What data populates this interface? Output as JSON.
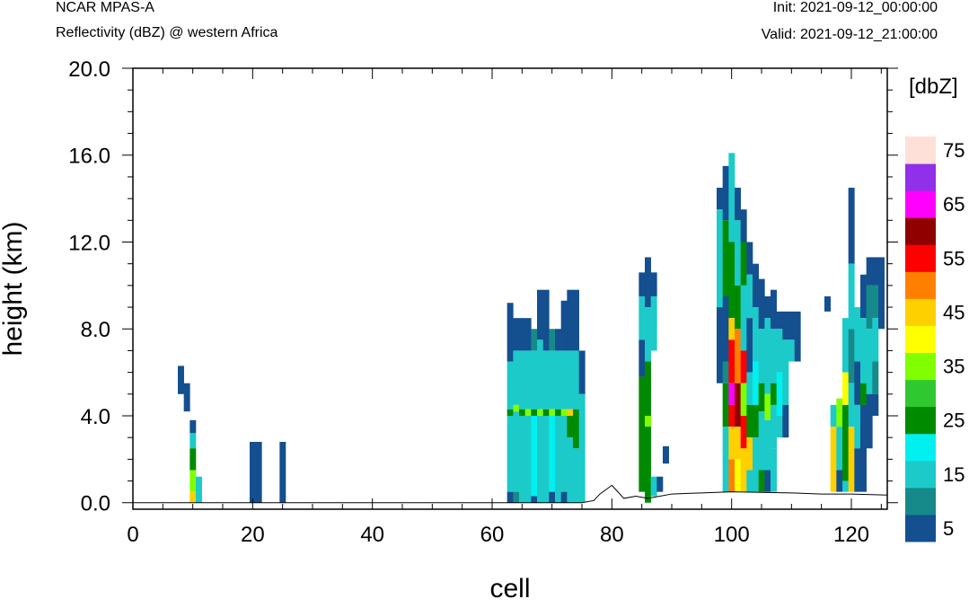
{
  "header": {
    "model": "NCAR MPAS-A",
    "field": "Reflectivity (dBZ) @ western Africa",
    "init": "Init: 2021-09-12_00:00:00",
    "valid": "Valid: 2021-09-12_21:00:00"
  },
  "chart_data": {
    "type": "heatmap",
    "xlabel": "cell",
    "ylabel": "height (km)",
    "xlim": [
      0,
      126
    ],
    "ylim": [
      -0.3,
      20.0
    ],
    "x_ticks": [
      "0",
      "20",
      "40",
      "60",
      "80",
      "100",
      "120"
    ],
    "x_tick_values": [
      0,
      20,
      40,
      60,
      80,
      100,
      120
    ],
    "y_ticks": [
      "0.0",
      "4.0",
      "8.0",
      "12.0",
      "16.0",
      "20.0"
    ],
    "y_tick_values": [
      0,
      4,
      8,
      12,
      16,
      20
    ],
    "colorbar": {
      "unit": "[dbZ]",
      "labels": [
        "5",
        "15",
        "25",
        "35",
        "45",
        "55",
        "65",
        "75"
      ],
      "levels": [
        5,
        10,
        15,
        20,
        25,
        30,
        35,
        40,
        45,
        50,
        55,
        60,
        65,
        70,
        75
      ],
      "colors": [
        "#144f8f",
        "#168a8a",
        "#1ccaca",
        "#00f0f0",
        "#008a00",
        "#30c830",
        "#80ff00",
        "#ffff00",
        "#ffd000",
        "#ff8000",
        "#ff0000",
        "#900000",
        "#ff00ff",
        "#9030e8",
        "#ffe0d8"
      ]
    },
    "terrain": [
      [
        75,
        0
      ],
      [
        77,
        0.1
      ],
      [
        78,
        0.4
      ],
      [
        79,
        0.6
      ],
      [
        80,
        0.8
      ],
      [
        81,
        0.5
      ],
      [
        82,
        0.2
      ],
      [
        84,
        0.3
      ],
      [
        86,
        0.2
      ],
      [
        88,
        0.3
      ],
      [
        90,
        0.4
      ],
      [
        95,
        0.45
      ],
      [
        100,
        0.5
      ],
      [
        110,
        0.45
      ],
      [
        115,
        0.4
      ],
      [
        120,
        0.4
      ],
      [
        126,
        0.35
      ]
    ],
    "columns": [
      {
        "x": 8,
        "cells": [
          [
            5.0,
            6.3,
            5
          ]
        ]
      },
      {
        "x": 9,
        "cells": [
          [
            4.2,
            5.5,
            5
          ]
        ]
      },
      {
        "x": 10,
        "cells": [
          [
            3.2,
            3.8,
            5
          ],
          [
            2.5,
            3.2,
            15
          ],
          [
            1.5,
            2.5,
            25
          ],
          [
            0.5,
            1.5,
            35
          ],
          [
            0,
            0.5,
            45
          ]
        ]
      },
      {
        "x": 11,
        "cells": [
          [
            0,
            1.2,
            15
          ]
        ]
      },
      {
        "x": 20,
        "cells": [
          [
            0,
            2.8,
            5
          ]
        ]
      },
      {
        "x": 21,
        "cells": [
          [
            0,
            2.8,
            5
          ]
        ]
      },
      {
        "x": 25,
        "cells": [
          [
            0,
            2.8,
            5
          ]
        ]
      },
      {
        "x": 63,
        "cells": [
          [
            6.5,
            9.2,
            5
          ],
          [
            4.3,
            6.5,
            15
          ],
          [
            4.0,
            4.3,
            25
          ],
          [
            0.5,
            4.0,
            15
          ],
          [
            0,
            0.5,
            5
          ]
        ]
      },
      {
        "x": 64,
        "cells": [
          [
            7.0,
            8.5,
            5
          ],
          [
            4.5,
            7.0,
            15
          ],
          [
            4.2,
            4.5,
            35
          ],
          [
            0.5,
            4.2,
            15
          ],
          [
            0,
            0.5,
            10
          ]
        ]
      },
      {
        "x": 65,
        "cells": [
          [
            7.0,
            8.5,
            5
          ],
          [
            4.3,
            7.0,
            15
          ],
          [
            4.0,
            4.3,
            25
          ],
          [
            0,
            4.0,
            15
          ]
        ]
      },
      {
        "x": 66,
        "cells": [
          [
            7.0,
            8.5,
            5
          ],
          [
            4.3,
            7.0,
            15
          ],
          [
            4.0,
            4.3,
            35
          ],
          [
            0,
            4.0,
            15
          ]
        ]
      },
      {
        "x": 67,
        "cells": [
          [
            7.0,
            8.0,
            10
          ],
          [
            4.3,
            7.0,
            15
          ],
          [
            4.0,
            4.3,
            25
          ],
          [
            0.3,
            4.0,
            20
          ],
          [
            0,
            0.3,
            5
          ]
        ]
      },
      {
        "x": 68,
        "cells": [
          [
            7.5,
            9.8,
            5
          ],
          [
            4.3,
            7.5,
            15
          ],
          [
            4.0,
            4.3,
            35
          ],
          [
            0,
            4.0,
            15
          ]
        ]
      },
      {
        "x": 69,
        "cells": [
          [
            7.0,
            9.8,
            5
          ],
          [
            4.3,
            7.0,
            15
          ],
          [
            4.0,
            4.3,
            25
          ],
          [
            0,
            4.0,
            15
          ]
        ]
      },
      {
        "x": 70,
        "cells": [
          [
            7.0,
            8.0,
            10
          ],
          [
            4.3,
            7.0,
            15
          ],
          [
            4.0,
            4.3,
            35
          ],
          [
            0.5,
            4.0,
            20
          ],
          [
            0,
            0.5,
            5
          ]
        ]
      },
      {
        "x": 71,
        "cells": [
          [
            7.0,
            8.0,
            5
          ],
          [
            4.3,
            7.0,
            15
          ],
          [
            4.0,
            4.3,
            25
          ],
          [
            0,
            4.0,
            15
          ]
        ]
      },
      {
        "x": 72,
        "cells": [
          [
            7.0,
            9.3,
            5
          ],
          [
            4.3,
            7.0,
            15
          ],
          [
            4.0,
            4.3,
            35
          ],
          [
            0.5,
            4.0,
            15
          ],
          [
            0,
            0.5,
            5
          ]
        ]
      },
      {
        "x": 73,
        "cells": [
          [
            7.0,
            9.8,
            5
          ],
          [
            4.3,
            7.0,
            15
          ],
          [
            4.0,
            4.3,
            45
          ],
          [
            3.0,
            4.0,
            25
          ],
          [
            0,
            3.0,
            15
          ]
        ]
      },
      {
        "x": 74,
        "cells": [
          [
            7.0,
            9.8,
            5
          ],
          [
            4.3,
            7.0,
            15
          ],
          [
            4.0,
            4.3,
            25
          ],
          [
            2.5,
            4.0,
            25
          ],
          [
            0,
            2.5,
            15
          ]
        ]
      },
      {
        "x": 75,
        "cells": [
          [
            5.0,
            7.0,
            5
          ],
          [
            0,
            5.0,
            15
          ]
        ]
      },
      {
        "x": 85,
        "cells": [
          [
            9.5,
            10.6,
            5
          ],
          [
            7.5,
            9.5,
            15
          ],
          [
            5.8,
            7.5,
            5
          ],
          [
            0.5,
            5.8,
            25
          ]
        ]
      },
      {
        "x": 86,
        "cells": [
          [
            9.0,
            11.3,
            5
          ],
          [
            6.5,
            9.0,
            15
          ],
          [
            4.0,
            6.5,
            25
          ],
          [
            3.5,
            4.0,
            35
          ],
          [
            0,
            3.5,
            25
          ]
        ]
      },
      {
        "x": 87,
        "cells": [
          [
            9.5,
            10.6,
            5
          ],
          [
            7.0,
            9.5,
            15
          ],
          [
            0.3,
            1.2,
            15
          ]
        ]
      },
      {
        "x": 88,
        "cells": [
          [
            0.5,
            1.2,
            5
          ]
        ]
      },
      {
        "x": 89,
        "cells": [
          [
            1.8,
            2.6,
            5
          ]
        ]
      },
      {
        "x": 98,
        "cells": [
          [
            13.5,
            14.5,
            5
          ],
          [
            9.0,
            13.5,
            15
          ],
          [
            5.5,
            9.0,
            5
          ]
        ]
      },
      {
        "x": 99,
        "cells": [
          [
            13.0,
            15.5,
            5
          ],
          [
            9.5,
            13.0,
            25
          ],
          [
            6.5,
            9.5,
            5
          ],
          [
            5.5,
            6.5,
            10
          ],
          [
            3.5,
            5.5,
            25
          ],
          [
            0.5,
            3.5,
            15
          ]
        ]
      },
      {
        "x": 100,
        "cells": [
          [
            12.0,
            16.1,
            15
          ],
          [
            8.5,
            12.0,
            25
          ],
          [
            7.5,
            8.5,
            45
          ],
          [
            5.5,
            7.5,
            55
          ],
          [
            4.5,
            5.5,
            65
          ],
          [
            3.5,
            4.5,
            55
          ],
          [
            2.0,
            3.5,
            45
          ],
          [
            0.5,
            2.0,
            50
          ]
        ]
      },
      {
        "x": 101,
        "cells": [
          [
            13.0,
            14.5,
            5
          ],
          [
            10.0,
            13.0,
            15
          ],
          [
            8.0,
            10.0,
            25
          ],
          [
            5.5,
            8.0,
            50
          ],
          [
            3.5,
            5.5,
            60
          ],
          [
            2.0,
            3.5,
            45
          ],
          [
            0.5,
            2.0,
            40
          ]
        ]
      },
      {
        "x": 102,
        "cells": [
          [
            12.0,
            13.5,
            5
          ],
          [
            10.0,
            12.0,
            25
          ],
          [
            7.0,
            10.0,
            15
          ],
          [
            5.5,
            7.0,
            55
          ],
          [
            4.0,
            5.5,
            35
          ],
          [
            2.5,
            4.0,
            55
          ],
          [
            0.5,
            2.5,
            45
          ]
        ]
      },
      {
        "x": 103,
        "cells": [
          [
            10.5,
            12.0,
            5
          ],
          [
            8.5,
            10.5,
            15
          ],
          [
            6.0,
            8.5,
            5
          ],
          [
            4.5,
            6.0,
            15
          ],
          [
            3.0,
            4.5,
            25
          ],
          [
            1.5,
            3.0,
            45
          ],
          [
            0.5,
            1.5,
            15
          ]
        ]
      },
      {
        "x": 104,
        "cells": [
          [
            9.0,
            11.0,
            5
          ],
          [
            6.5,
            9.0,
            15
          ],
          [
            4.5,
            6.5,
            20
          ],
          [
            3.0,
            4.5,
            25
          ],
          [
            0.5,
            3.0,
            15
          ]
        ]
      },
      {
        "x": 105,
        "cells": [
          [
            8.0,
            10.3,
            5
          ],
          [
            5.5,
            8.0,
            15
          ],
          [
            4.2,
            5.5,
            25
          ],
          [
            1.5,
            4.2,
            15
          ],
          [
            0.5,
            1.5,
            25
          ]
        ]
      },
      {
        "x": 106,
        "cells": [
          [
            8.5,
            9.5,
            5
          ],
          [
            5.0,
            8.5,
            15
          ],
          [
            3.8,
            5.0,
            35
          ],
          [
            1.5,
            3.8,
            15
          ],
          [
            0.5,
            1.5,
            5
          ]
        ]
      },
      {
        "x": 107,
        "cells": [
          [
            8.0,
            9.8,
            5
          ],
          [
            5.5,
            8.0,
            15
          ],
          [
            4.5,
            5.5,
            25
          ],
          [
            2.5,
            4.5,
            15
          ],
          [
            0.5,
            2.5,
            15
          ]
        ]
      },
      {
        "x": 108,
        "cells": [
          [
            8.0,
            8.8,
            5
          ],
          [
            6.0,
            8.0,
            15
          ],
          [
            4.0,
            6.0,
            20
          ],
          [
            3.0,
            4.0,
            15
          ]
        ]
      },
      {
        "x": 109,
        "cells": [
          [
            7.5,
            8.8,
            5
          ],
          [
            4.5,
            7.5,
            15
          ],
          [
            3.0,
            4.5,
            5
          ]
        ]
      },
      {
        "x": 110,
        "cells": [
          [
            7.5,
            8.8,
            5
          ],
          [
            6.5,
            7.5,
            15
          ]
        ]
      },
      {
        "x": 111,
        "cells": [
          [
            6.5,
            8.8,
            5
          ]
        ]
      },
      {
        "x": 116,
        "cells": [
          [
            8.8,
            9.5,
            5
          ]
        ]
      },
      {
        "x": 117,
        "cells": [
          [
            3.5,
            4.5,
            15
          ],
          [
            0.5,
            3.5,
            45
          ]
        ]
      },
      {
        "x": 118,
        "cells": [
          [
            3.5,
            4.8,
            35
          ],
          [
            1.5,
            3.5,
            15
          ],
          [
            0.5,
            1.5,
            5
          ]
        ]
      },
      {
        "x": 119,
        "cells": [
          [
            6.0,
            8.5,
            15
          ],
          [
            4.5,
            6.0,
            40
          ],
          [
            3.5,
            4.5,
            25
          ],
          [
            1.0,
            3.5,
            25
          ],
          [
            0.5,
            1.0,
            15
          ]
        ]
      },
      {
        "x": 120,
        "cells": [
          [
            11.0,
            14.5,
            5
          ],
          [
            8.0,
            11.0,
            15
          ],
          [
            5.5,
            8.0,
            10
          ],
          [
            3.5,
            5.5,
            15
          ],
          [
            0.5,
            3.5,
            45
          ]
        ]
      },
      {
        "x": 121,
        "cells": [
          [
            6.5,
            9.0,
            15
          ],
          [
            4.5,
            6.5,
            5
          ],
          [
            2.5,
            4.5,
            15
          ],
          [
            0.5,
            2.5,
            5
          ]
        ]
      },
      {
        "x": 122,
        "cells": [
          [
            8.5,
            10.5,
            5
          ],
          [
            5.5,
            8.5,
            15
          ],
          [
            4.5,
            5.5,
            25
          ],
          [
            0.5,
            4.5,
            5
          ]
        ]
      },
      {
        "x": 123,
        "cells": [
          [
            10.0,
            11.3,
            5
          ],
          [
            8.0,
            10.0,
            10
          ],
          [
            5.0,
            8.0,
            15
          ],
          [
            2.5,
            5.0,
            5
          ]
        ]
      },
      {
        "x": 124,
        "cells": [
          [
            10.0,
            11.3,
            5
          ],
          [
            8.5,
            10.0,
            10
          ],
          [
            6.5,
            8.5,
            15
          ],
          [
            5.0,
            6.5,
            10
          ],
          [
            4.0,
            5.0,
            5
          ]
        ]
      },
      {
        "x": 125,
        "cells": [
          [
            8.0,
            11.3,
            5
          ]
        ]
      }
    ]
  }
}
